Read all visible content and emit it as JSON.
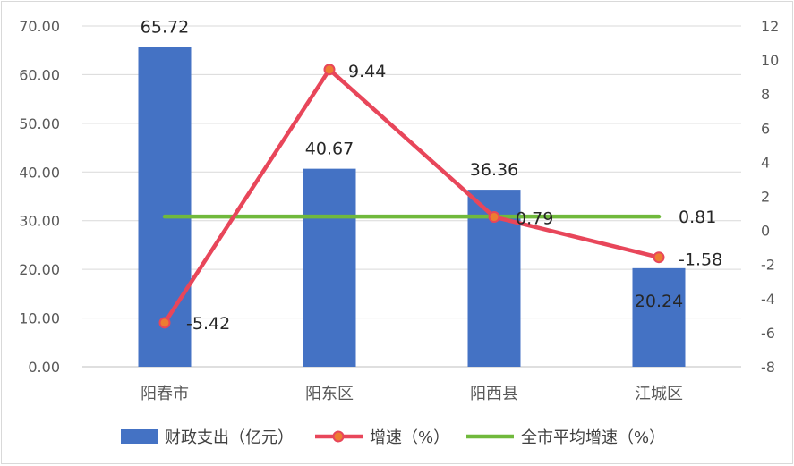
{
  "chart_data": {
    "type": "bar",
    "categories": [
      "阳春市",
      "阳东区",
      "阳西县",
      "江城区"
    ],
    "series": [
      {
        "name": "财政支出（亿元）",
        "type": "bar",
        "axis": "left",
        "values": [
          65.72,
          40.67,
          36.36,
          20.24
        ],
        "color": "#4472C4"
      },
      {
        "name": "增速（%）",
        "type": "line",
        "axis": "right",
        "values": [
          -5.42,
          9.44,
          0.79,
          -1.58
        ],
        "color": "#E8465A"
      },
      {
        "name": "全市平均增速（%）",
        "type": "line",
        "axis": "right",
        "values": [
          0.81,
          0.81,
          0.81,
          0.81
        ],
        "color": "#70B93C"
      }
    ],
    "y_left": {
      "min": 0,
      "max": 70,
      "step": 10,
      "ticks": [
        "0.00",
        "10.00",
        "20.00",
        "30.00",
        "40.00",
        "50.00",
        "60.00",
        "70.00"
      ]
    },
    "y_right": {
      "min": -8,
      "max": 12,
      "step": 2,
      "ticks": [
        "-8",
        "-6",
        "-4",
        "-2",
        "0",
        "2",
        "4",
        "6",
        "8",
        "10",
        "12"
      ]
    },
    "bar_labels": [
      "65.72",
      "40.67",
      "36.36",
      "20.24"
    ],
    "growth_labels": [
      "-5.42",
      "9.44",
      "0.79",
      "-1.58"
    ],
    "avg_label": "0.81",
    "legend": {
      "position": "bottom"
    }
  }
}
